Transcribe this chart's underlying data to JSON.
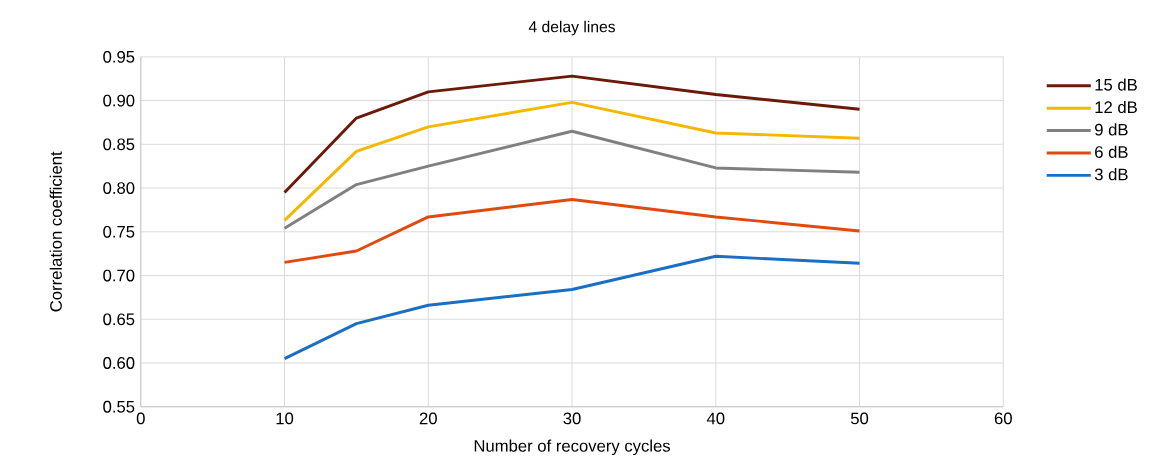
{
  "chart_data": {
    "type": "line",
    "title": "4 delay lines",
    "xlabel": "Number of recovery cycles",
    "ylabel": "Correlation coefficient",
    "x": [
      10,
      15,
      20,
      30,
      40,
      50
    ],
    "series": [
      {
        "name": "15 dB",
        "color": "#6b1a0a",
        "values": [
          0.795,
          0.88,
          0.91,
          0.928,
          0.907,
          0.89
        ]
      },
      {
        "name": "12 dB",
        "color": "#f5b800",
        "values": [
          0.763,
          0.842,
          0.87,
          0.898,
          0.863,
          0.857
        ]
      },
      {
        "name": "9 dB",
        "color": "#808080",
        "values": [
          0.754,
          0.804,
          0.825,
          0.865,
          0.823,
          0.818
        ]
      },
      {
        "name": "6 dB",
        "color": "#e04a10",
        "values": [
          0.715,
          0.728,
          0.767,
          0.787,
          0.767,
          0.751
        ]
      },
      {
        "name": "3 dB",
        "color": "#1a6fc4",
        "values": [
          0.605,
          0.645,
          0.666,
          0.684,
          0.722,
          0.714
        ]
      }
    ],
    "xlim": [
      0,
      60
    ],
    "xticks": [
      0,
      10,
      20,
      30,
      40,
      50,
      60
    ],
    "ylim": [
      0.55,
      0.95
    ],
    "yticks": [
      {
        "value": 0.55,
        "label": "0.55"
      },
      {
        "value": 0.6,
        "label": "0.60"
      },
      {
        "value": 0.65,
        "label": "0.65"
      },
      {
        "value": 0.7,
        "label": "0.70"
      },
      {
        "value": 0.75,
        "label": "0.75"
      },
      {
        "value": 0.8,
        "label": "0.80"
      },
      {
        "value": 0.85,
        "label": "0.85"
      },
      {
        "value": 0.9,
        "label": "0.90"
      },
      {
        "value": 0.95,
        "label": "0.95"
      }
    ],
    "grid": true,
    "legend": "right",
    "marker": "none",
    "line_style": "solid"
  }
}
